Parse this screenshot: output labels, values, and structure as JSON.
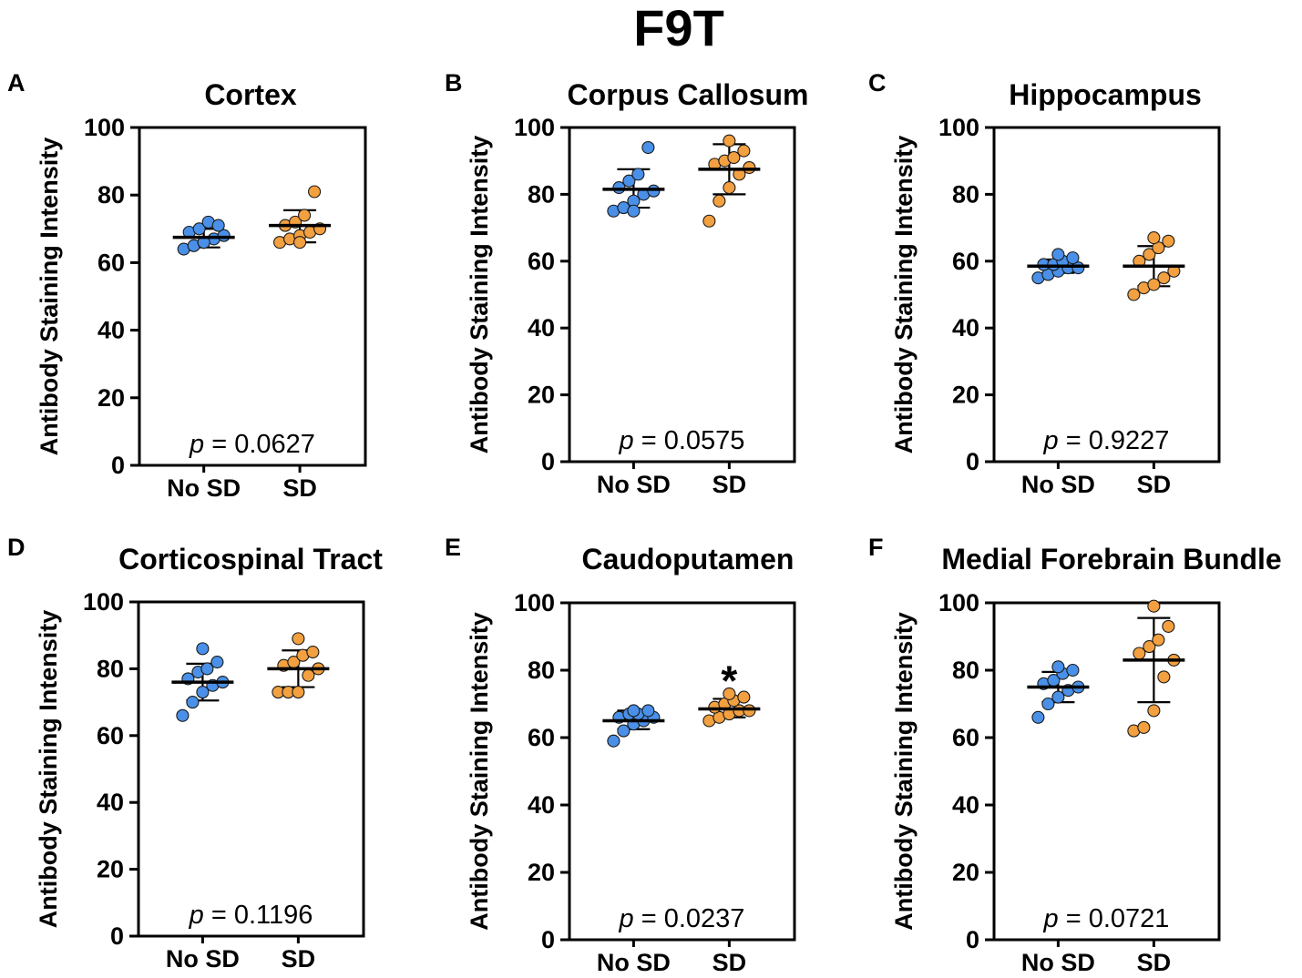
{
  "figure_title": "F9T",
  "colors": {
    "no_sd": "#4A90E8",
    "sd": "#F2A040",
    "point_edge": "#1a1a1a",
    "axis": "#000000"
  },
  "chart_data": [
    {
      "type": "scatter",
      "panel": "A",
      "title": "Cortex",
      "ylabel": "Antibody Staining Intensity",
      "ylim": [
        0,
        100
      ],
      "yticks": [
        "0",
        "20",
        "40",
        "60",
        "80",
        "100"
      ],
      "categories": [
        "No SD",
        "SD"
      ],
      "p_prefix": "p",
      "p_value": "= 0.0627",
      "significance": "",
      "series": [
        {
          "name": "No SD",
          "mean": 67.5,
          "sd_low": 64.5,
          "sd_high": 70.0,
          "values": [
            64,
            65,
            66,
            67,
            68,
            69,
            70,
            72,
            71,
            66
          ]
        },
        {
          "name": "SD",
          "mean": 71.0,
          "sd_low": 66.0,
          "sd_high": 75.5,
          "values": [
            66,
            67,
            68,
            69,
            70,
            71,
            72,
            74,
            81,
            66
          ]
        }
      ]
    },
    {
      "type": "scatter",
      "panel": "B",
      "title": "Corpus Callosum",
      "ylabel": "Antibody Staining Intensity",
      "ylim": [
        0,
        100
      ],
      "yticks": [
        "0",
        "20",
        "40",
        "60",
        "80",
        "100"
      ],
      "categories": [
        "No SD",
        "SD"
      ],
      "p_prefix": "p",
      "p_value": "= 0.0575",
      "significance": "",
      "series": [
        {
          "name": "No SD",
          "mean": 81.5,
          "sd_low": 76.0,
          "sd_high": 87.5,
          "values": [
            75,
            76,
            78,
            80,
            81,
            82,
            84,
            86,
            94,
            75
          ]
        },
        {
          "name": "SD",
          "mean": 87.5,
          "sd_low": 80.0,
          "sd_high": 95.0,
          "values": [
            72,
            78,
            82,
            86,
            88,
            89,
            90,
            91,
            93,
            96
          ]
        }
      ]
    },
    {
      "type": "scatter",
      "panel": "C",
      "title": "Hippocampus",
      "ylabel": "Antibody Staining Intensity",
      "ylim": [
        0,
        100
      ],
      "yticks": [
        "0",
        "20",
        "40",
        "60",
        "80",
        "100"
      ],
      "categories": [
        "No SD",
        "SD"
      ],
      "p_prefix": "p",
      "p_value": "= 0.9227",
      "significance": "",
      "series": [
        {
          "name": "No SD",
          "mean": 58.5,
          "sd_low": 56.5,
          "sd_high": 60.5,
          "values": [
            55,
            56,
            57,
            58,
            58,
            59,
            59,
            60,
            61,
            62
          ]
        },
        {
          "name": "SD",
          "mean": 58.5,
          "sd_low": 52.5,
          "sd_high": 64.5,
          "values": [
            50,
            52,
            53,
            55,
            57,
            60,
            62,
            64,
            66,
            67
          ]
        }
      ]
    },
    {
      "type": "scatter",
      "panel": "D",
      "title": "Corticospinal Tract",
      "ylabel": "Antibody Staining Intensity",
      "ylim": [
        0,
        100
      ],
      "yticks": [
        "0",
        "20",
        "40",
        "60",
        "80",
        "100"
      ],
      "categories": [
        "No SD",
        "SD"
      ],
      "p_prefix": "p",
      "p_value": "= 0.1196",
      "significance": "",
      "series": [
        {
          "name": "No SD",
          "mean": 76.0,
          "sd_low": 70.5,
          "sd_high": 81.5,
          "values": [
            66,
            70,
            73,
            75,
            76,
            77,
            79,
            80,
            82,
            86
          ]
        },
        {
          "name": "SD",
          "mean": 80.0,
          "sd_low": 74.5,
          "sd_high": 85.5,
          "values": [
            73,
            73,
            73,
            78,
            80,
            81,
            82,
            84,
            85,
            89
          ]
        }
      ]
    },
    {
      "type": "scatter",
      "panel": "E",
      "title": "Caudoputamen",
      "ylabel": "Antibody Staining Intensity",
      "ylim": [
        0,
        100
      ],
      "yticks": [
        "0",
        "20",
        "40",
        "60",
        "80",
        "100"
      ],
      "categories": [
        "No SD",
        "SD"
      ],
      "p_prefix": "p",
      "p_value": "= 0.0237",
      "significance": "*",
      "series": [
        {
          "name": "No SD",
          "mean": 65.0,
          "sd_low": 62.5,
          "sd_high": 68.0,
          "values": [
            59,
            62,
            64,
            65,
            66,
            66,
            67,
            67,
            68,
            68
          ]
        },
        {
          "name": "SD",
          "mean": 68.5,
          "sd_low": 66.0,
          "sd_high": 71.5,
          "values": [
            65,
            66,
            67,
            68,
            68,
            69,
            70,
            71,
            72,
            73
          ]
        }
      ]
    },
    {
      "type": "scatter",
      "panel": "F",
      "title": "Medial Forebrain Bundle",
      "ylabel": "Antibody Staining Intensity",
      "ylim": [
        0,
        100
      ],
      "yticks": [
        "0",
        "20",
        "40",
        "60",
        "80",
        "100"
      ],
      "categories": [
        "No SD",
        "SD"
      ],
      "p_prefix": "p",
      "p_value": "= 0.0721",
      "significance": "",
      "series": [
        {
          "name": "No SD",
          "mean": 75.0,
          "sd_low": 70.5,
          "sd_high": 79.5,
          "values": [
            66,
            70,
            72,
            74,
            75,
            76,
            77,
            79,
            80,
            81
          ]
        },
        {
          "name": "SD",
          "mean": 83.0,
          "sd_low": 70.5,
          "sd_high": 95.5,
          "values": [
            62,
            63,
            68,
            78,
            83,
            85,
            87,
            89,
            93,
            99
          ]
        }
      ]
    }
  ]
}
